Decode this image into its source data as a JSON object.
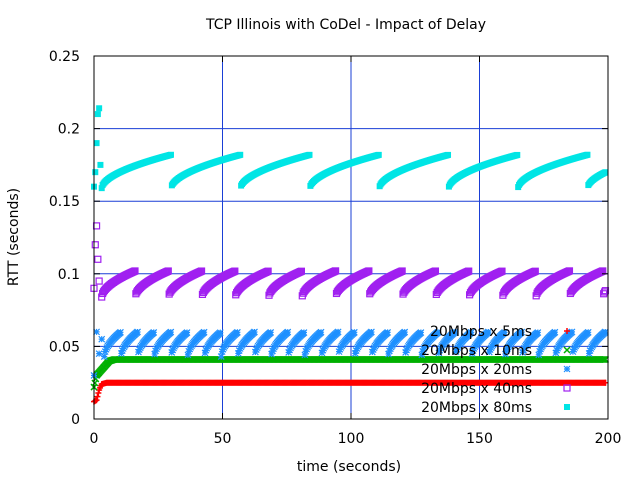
{
  "chart_data": {
    "type": "scatter",
    "title": "TCP Illinois with CoDel - Impact of Delay",
    "xlabel": "time (seconds)",
    "ylabel": "RTT (seconds)",
    "xlim": [
      0,
      200
    ],
    "ylim": [
      0,
      0.25
    ],
    "x_ticks": [
      0,
      50,
      100,
      150,
      200
    ],
    "y_ticks": [
      0,
      0.05,
      0.1,
      0.15,
      0.2,
      0.25
    ],
    "x_tick_labels": [
      "0",
      "50",
      "100",
      "150",
      "200"
    ],
    "y_tick_labels": [
      "0",
      "0.05",
      "0.1",
      "0.15",
      "0.2",
      "0.25"
    ],
    "grid": true,
    "legend_position": "bottom-right",
    "series": [
      {
        "name": "20Mbps x 5ms",
        "color": "#ff0000",
        "marker": "plus",
        "points": [
          [
            0,
            0.012
          ],
          [
            1,
            0.013
          ],
          [
            2,
            0.02
          ],
          [
            3,
            0.024
          ],
          [
            5,
            0.025
          ],
          [
            50,
            0.025
          ],
          [
            100,
            0.025
          ],
          [
            150,
            0.025
          ],
          [
            199,
            0.025
          ]
        ]
      },
      {
        "name": "20Mbps x 10ms",
        "color": "#00b000",
        "marker": "x",
        "points": [
          [
            0,
            0.022
          ],
          [
            1,
            0.03
          ],
          [
            2,
            0.032
          ],
          [
            4,
            0.036
          ],
          [
            6,
            0.04
          ],
          [
            8,
            0.041
          ],
          [
            50,
            0.041
          ],
          [
            100,
            0.041
          ],
          [
            150,
            0.041
          ],
          [
            199,
            0.041
          ]
        ]
      },
      {
        "name": "20Mbps x 20ms",
        "color": "#1e90ff",
        "marker": "star",
        "sawtooth": {
          "start": 4,
          "end": 199,
          "period": 6.5,
          "min": 0.043,
          "max": 0.06
        },
        "points": [
          [
            0,
            0.03
          ],
          [
            1,
            0.06
          ],
          [
            2,
            0.045
          ],
          [
            3,
            0.055
          ]
        ]
      },
      {
        "name": "20Mbps x 40ms",
        "color": "#a020f0",
        "marker": "box",
        "sawtooth": {
          "start": 3,
          "end": 199,
          "period": 13,
          "min": 0.084,
          "max": 0.102
        },
        "points": [
          [
            0,
            0.09
          ],
          [
            0.5,
            0.12
          ],
          [
            1,
            0.133
          ],
          [
            1.5,
            0.11
          ],
          [
            2,
            0.095
          ]
        ]
      },
      {
        "name": "20Mbps x 80ms",
        "color": "#00e5e5",
        "marker": "filled-box",
        "sawtooth": {
          "start": 3,
          "end": 199,
          "period": 27,
          "min": 0.159,
          "max": 0.182
        },
        "points": [
          [
            0,
            0.16
          ],
          [
            0.5,
            0.17
          ],
          [
            1,
            0.19
          ],
          [
            1.5,
            0.21
          ],
          [
            2,
            0.214
          ],
          [
            2.5,
            0.175
          ]
        ]
      }
    ]
  }
}
